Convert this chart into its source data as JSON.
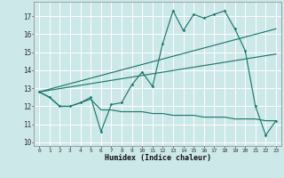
{
  "xlabel": "Humidex (Indice chaleur)",
  "xlim": [
    -0.5,
    23.5
  ],
  "ylim": [
    9.8,
    17.8
  ],
  "yticks": [
    10,
    11,
    12,
    13,
    14,
    15,
    16,
    17
  ],
  "xticks": [
    0,
    1,
    2,
    3,
    4,
    5,
    6,
    7,
    8,
    9,
    10,
    11,
    12,
    13,
    14,
    15,
    16,
    17,
    18,
    19,
    20,
    21,
    22,
    23
  ],
  "bg_color": "#cde8e8",
  "grid_color": "#ffffff",
  "line_color": "#1a7a6e",
  "line1_x": [
    0,
    1,
    2,
    3,
    4,
    5,
    6,
    7,
    8,
    9,
    10,
    11,
    12,
    13,
    14,
    15,
    16,
    17,
    18,
    19,
    20,
    21,
    22,
    23
  ],
  "line1_y": [
    12.8,
    12.5,
    12.0,
    12.0,
    12.2,
    12.5,
    10.6,
    12.1,
    12.2,
    13.2,
    13.9,
    13.1,
    15.5,
    17.3,
    16.2,
    17.1,
    16.9,
    17.1,
    17.3,
    16.3,
    15.1,
    12.0,
    10.4,
    11.2
  ],
  "line2_x": [
    0,
    23
  ],
  "line2_y": [
    12.8,
    16.3
  ],
  "line3_x": [
    0,
    23
  ],
  "line3_y": [
    12.8,
    14.9
  ],
  "line4_x": [
    0,
    1,
    2,
    3,
    4,
    5,
    6,
    7,
    8,
    9,
    10,
    11,
    12,
    13,
    14,
    15,
    16,
    17,
    18,
    19,
    20,
    21,
    22,
    23
  ],
  "line4_y": [
    12.8,
    12.5,
    12.0,
    12.0,
    12.2,
    12.4,
    11.8,
    11.8,
    11.7,
    11.7,
    11.7,
    11.6,
    11.6,
    11.5,
    11.5,
    11.5,
    11.4,
    11.4,
    11.4,
    11.3,
    11.3,
    11.3,
    11.2,
    11.2
  ]
}
